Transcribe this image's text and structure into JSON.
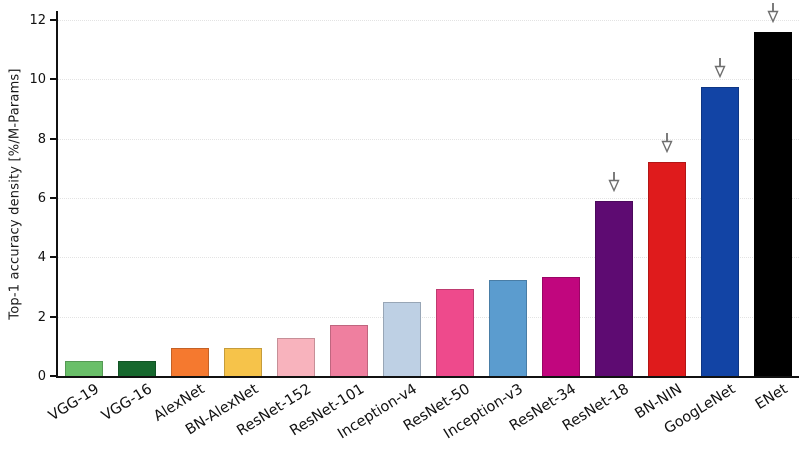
{
  "chart_data": {
    "type": "bar",
    "title": "",
    "xlabel": "",
    "ylabel": "Top-1 accuracy density [%/M-Params]",
    "categories": [
      "VGG-19",
      "VGG-16",
      "AlexNet",
      "BN-AlexNet",
      "ResNet-152",
      "ResNet-101",
      "Inception-v4",
      "ResNet-50",
      "Inception-v3",
      "ResNet-34",
      "ResNet-18",
      "BN-NIN",
      "GoogLeNet",
      "ENet"
    ],
    "values": [
      0.5,
      0.52,
      0.93,
      0.95,
      1.27,
      1.71,
      2.5,
      2.92,
      3.22,
      3.32,
      5.9,
      7.21,
      9.75,
      11.6
    ],
    "bar_colors": [
      "#6abf69",
      "#17682e",
      "#f5792f",
      "#f6c34a",
      "#f8b3bd",
      "#ef7f9f",
      "#bed0e4",
      "#ee4a8c",
      "#5b9ccf",
      "#c1067e",
      "#5e0b72",
      "#df1b1c",
      "#1244a5",
      "#000000"
    ],
    "annotated_with_down_arrow": [
      "ResNet-18",
      "BN-NIN",
      "GoogLeNet",
      "ENet"
    ],
    "arrow_indices": [
      10,
      11,
      12,
      13
    ],
    "yticks": [
      0,
      2,
      4,
      6,
      8,
      10,
      12
    ],
    "ylim": [
      0,
      12.3
    ],
    "legend": "none",
    "grid": "faint dotted horizontal gridlines at y ticks",
    "axis_color": "#111111",
    "arrow_color": "#6e6e6e",
    "background": "#ffffff"
  }
}
